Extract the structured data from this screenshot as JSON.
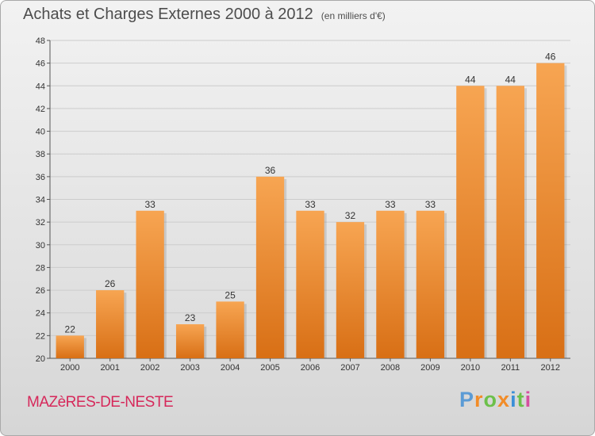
{
  "chart_data": {
    "type": "bar",
    "title": "Achats et Charges Externes 2000 à 2012",
    "subtitle": "(en milliers d'€)",
    "categories": [
      "2000",
      "2001",
      "2002",
      "2003",
      "2004",
      "2005",
      "2006",
      "2007",
      "2008",
      "2009",
      "2010",
      "2011",
      "2012"
    ],
    "values": [
      22,
      26,
      33,
      23,
      25,
      36,
      33,
      32,
      33,
      33,
      44,
      44,
      46
    ],
    "value_labels": [
      "22",
      "26",
      "33",
      "23",
      "25",
      "36",
      "33",
      "32",
      "33",
      "33",
      "44",
      "44",
      "46"
    ],
    "ylim": [
      20,
      48
    ],
    "yticks": [
      "20",
      "22",
      "24",
      "26",
      "28",
      "30",
      "32",
      "34",
      "36",
      "38",
      "40",
      "42",
      "44",
      "46",
      "48"
    ],
    "xlabel": "",
    "ylabel": "",
    "grid": true,
    "legend": "none",
    "colors": {
      "bar_light": "#f7a552",
      "bar_dark": "#d86f15",
      "grid": "#cccccc",
      "axis": "#555555"
    }
  },
  "footer": {
    "place": "MAZèRES-DE-NESTE",
    "logo_letters": [
      "P",
      "r",
      "o",
      "x",
      "i",
      "t",
      "i"
    ],
    "logo_colors": [
      "#5b9bd5",
      "#f28c28",
      "#6cc04a",
      "#f28c28",
      "#3a8fd8",
      "#6cc04a",
      "#d64fa0"
    ]
  }
}
